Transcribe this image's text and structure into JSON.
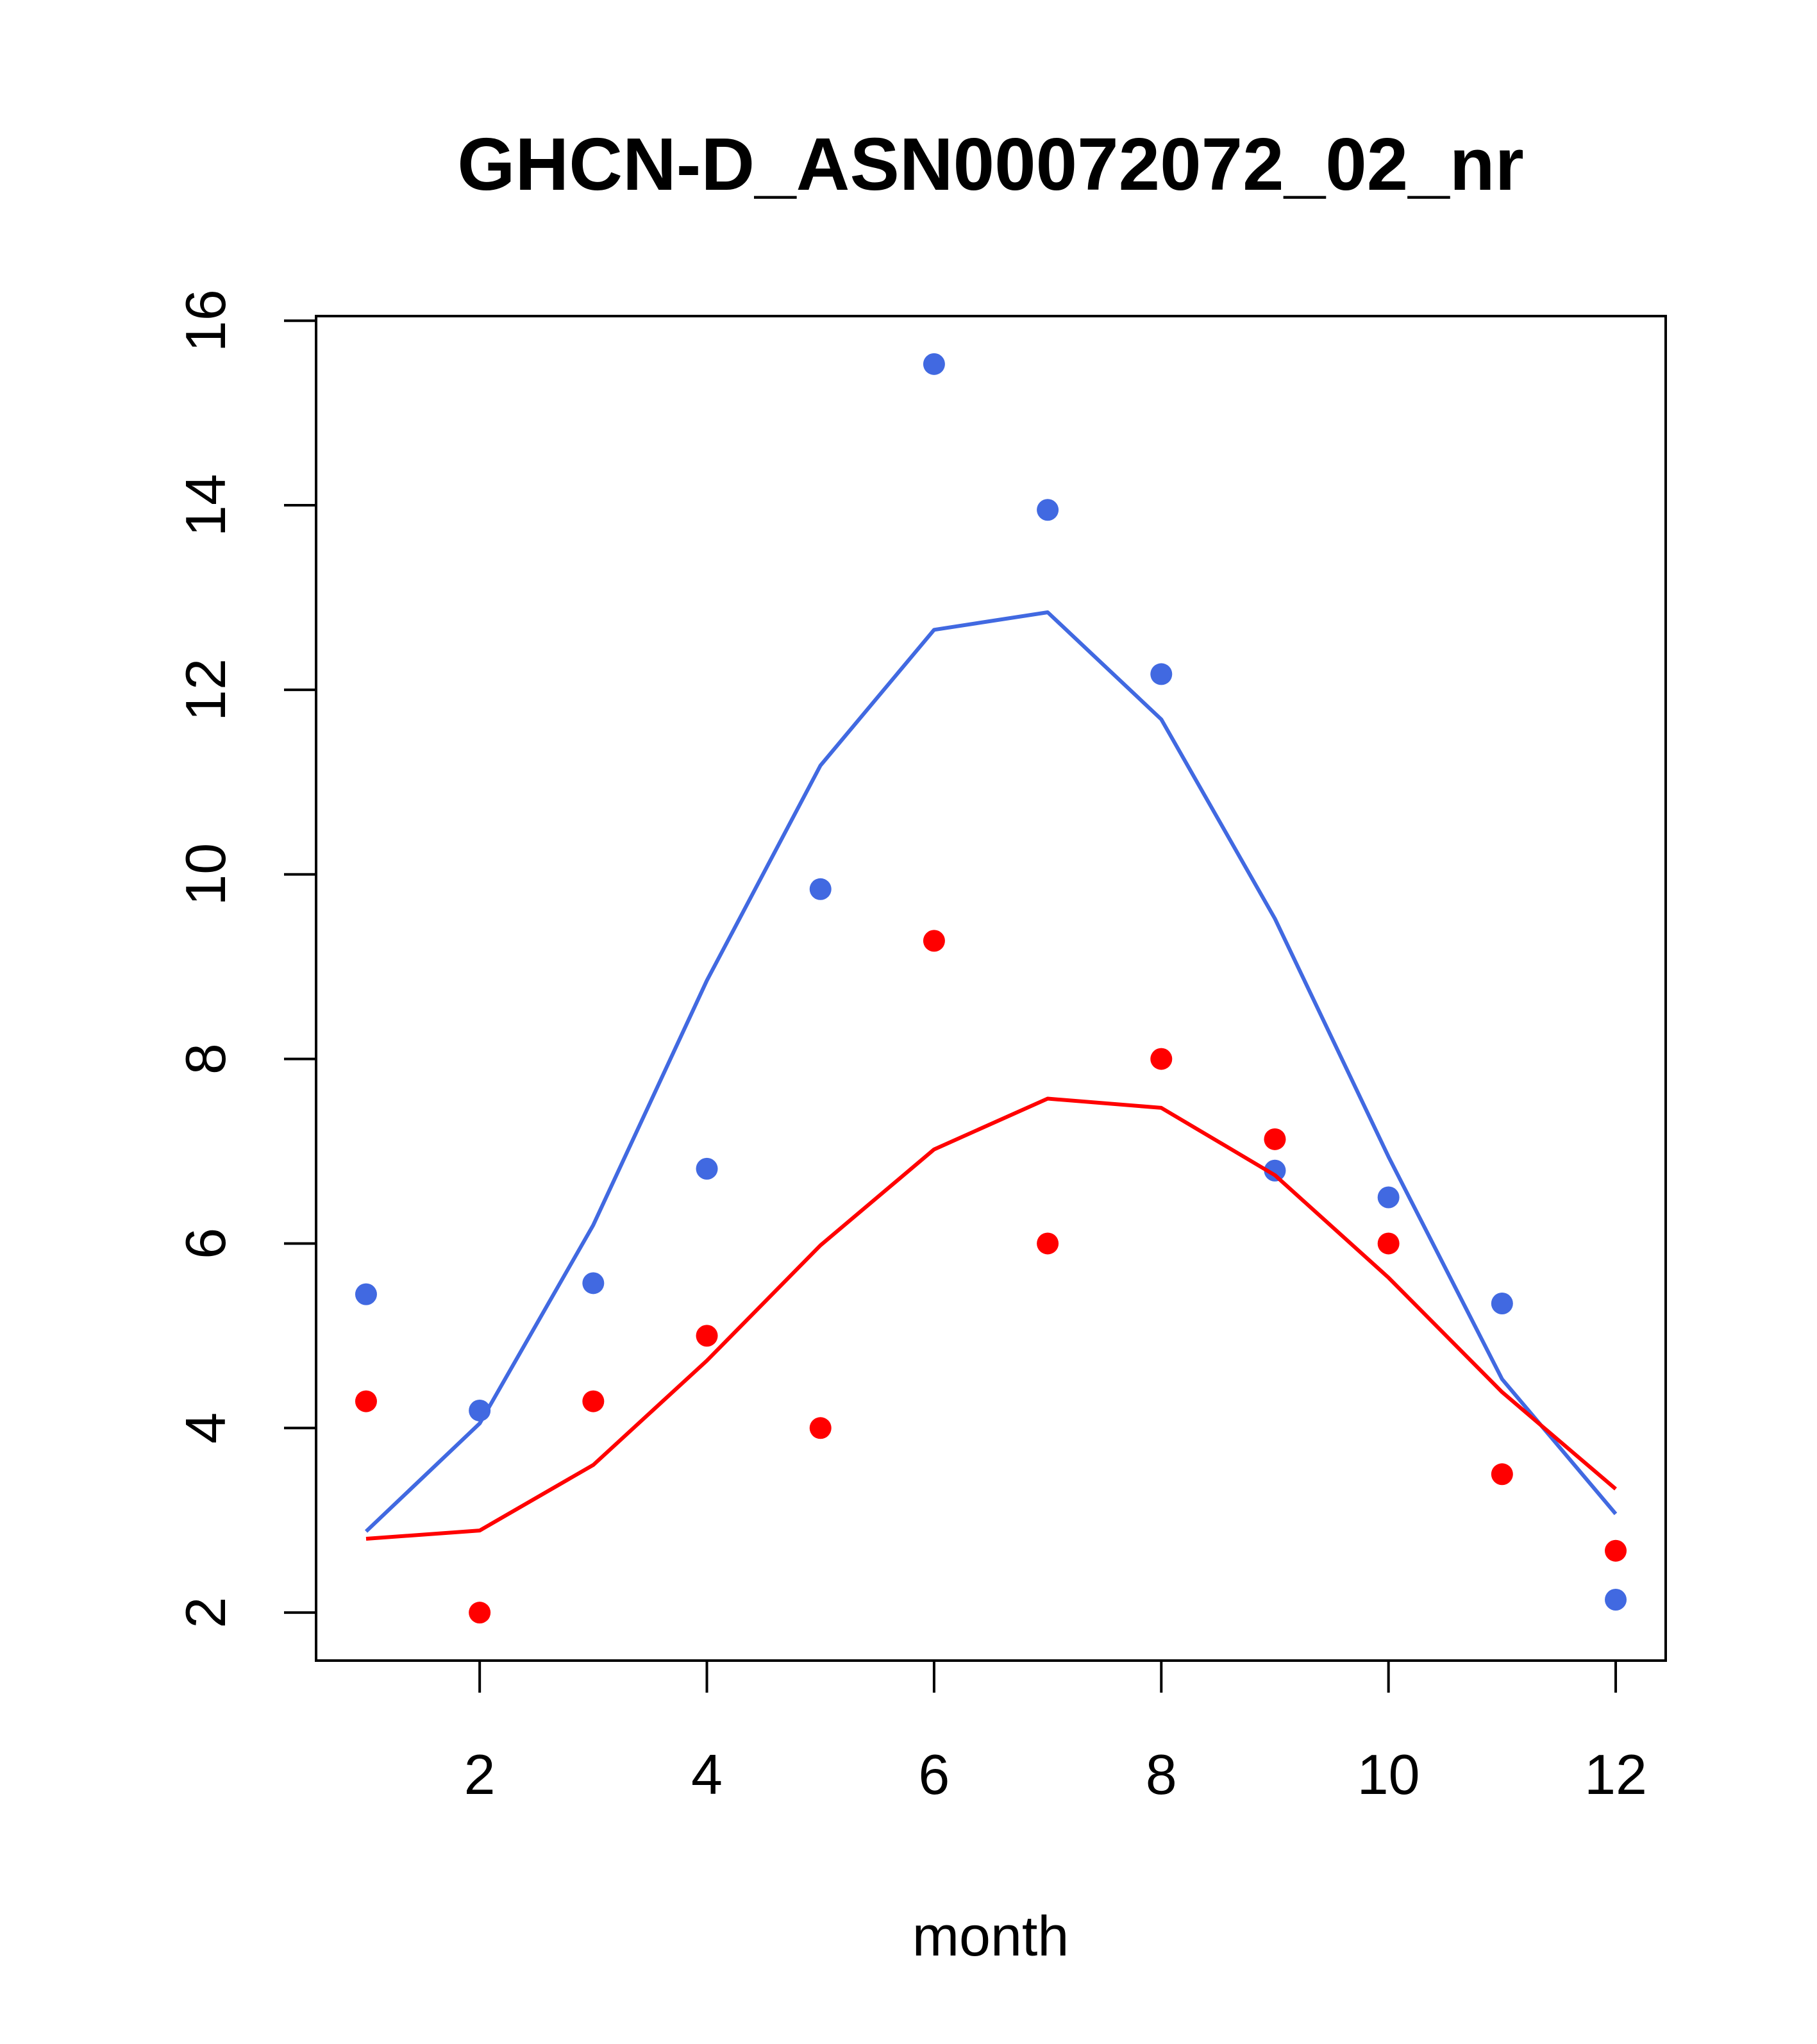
{
  "chart_data": {
    "type": "scatter",
    "title": "GHCN-D_ASN00072072_02_nr",
    "xlabel": "month",
    "ylabel": "",
    "xlim": [
      0.56,
      12.44
    ],
    "ylim": [
      1.48,
      16.05
    ],
    "xticks": [
      2,
      4,
      6,
      8,
      10,
      12
    ],
    "yticks": [
      2,
      4,
      6,
      8,
      10,
      12,
      14,
      16
    ],
    "grid": false,
    "series": [
      {
        "kind": "points",
        "color": "#4169E1",
        "x": [
          1,
          2,
          3,
          4,
          5,
          6,
          7,
          8,
          9,
          10,
          11,
          12
        ],
        "y": [
          5.45,
          4.19,
          5.57,
          6.81,
          9.84,
          15.53,
          13.95,
          12.17,
          6.79,
          6.5,
          5.35,
          2.14
        ]
      },
      {
        "kind": "line",
        "color": "#4169E1",
        "x": [
          1,
          2,
          3,
          4,
          5,
          6,
          7,
          8,
          9,
          10,
          11,
          12
        ],
        "y": [
          2.88,
          4.05,
          6.2,
          8.85,
          11.18,
          12.65,
          12.84,
          11.68,
          9.52,
          6.94,
          4.53,
          3.07
        ]
      },
      {
        "kind": "points",
        "color": "#FF0000",
        "x": [
          1,
          2,
          3,
          4,
          5,
          6,
          7,
          8,
          9,
          10,
          11,
          12
        ],
        "y": [
          4.29,
          2.0,
          4.29,
          5.0,
          4.0,
          9.28,
          6.0,
          8.0,
          7.13,
          6.0,
          3.5,
          2.67
        ]
      },
      {
        "kind": "line",
        "color": "#FF0000",
        "x": [
          1,
          2,
          3,
          4,
          5,
          6,
          7,
          8,
          9,
          10,
          11,
          12
        ],
        "y": [
          2.8,
          2.89,
          3.6,
          4.73,
          5.98,
          7.02,
          7.57,
          7.47,
          6.74,
          5.63,
          4.39,
          3.34
        ]
      }
    ]
  }
}
